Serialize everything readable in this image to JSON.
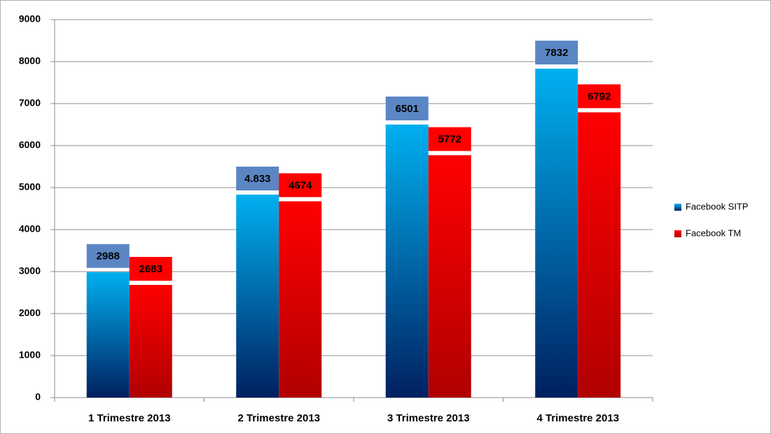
{
  "chart_data": {
    "type": "bar",
    "categories": [
      "1 Trimestre 2013",
      "2 Trimestre 2013",
      "3 Trimestre 2013",
      "4 Trimestre 2013"
    ],
    "series": [
      {
        "name": "Facebook SITP",
        "color": "#00b0f0",
        "values": [
          2988,
          4833,
          6501,
          7832
        ],
        "value_labels": [
          "2988",
          "4.833",
          "6501",
          "7832"
        ]
      },
      {
        "name": "Facebook TM",
        "color": "#ff0000",
        "values": [
          2683,
          4674,
          5772,
          6792
        ],
        "value_labels": [
          "2683",
          "4674",
          "5772",
          "6792"
        ]
      }
    ],
    "ylim": [
      0,
      9000
    ],
    "yticks": [
      0,
      1000,
      2000,
      3000,
      4000,
      5000,
      6000,
      7000,
      8000,
      9000
    ],
    "grid": true,
    "legend": "right"
  }
}
